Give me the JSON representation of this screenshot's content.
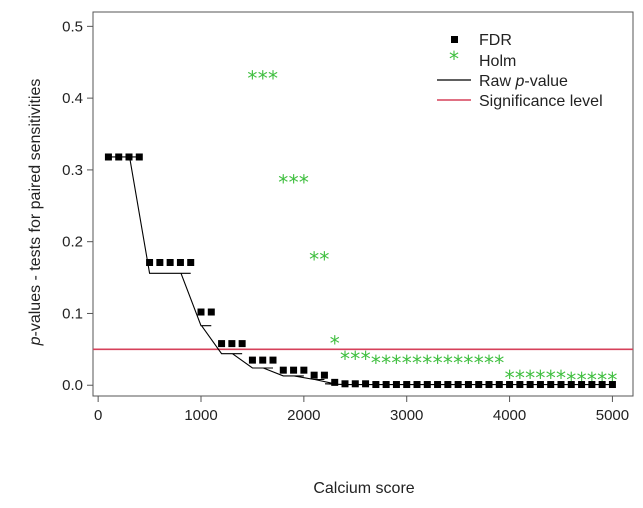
{
  "chart_data": {
    "type": "scatter",
    "xlabel": "Calcium score",
    "ylabel_italic": "p",
    "ylabel_rest": "-values - tests for paired sensitivities",
    "xlim": [
      -50,
      5200
    ],
    "ylim": [
      -0.015,
      0.52
    ],
    "x_ticks": [
      0,
      1000,
      2000,
      3000,
      4000,
      5000
    ],
    "x_tick_labels": [
      "0",
      "1000",
      "2000",
      "3000",
      "4000",
      "5000"
    ],
    "y_ticks": [
      0.0,
      0.1,
      0.2,
      0.3,
      0.4,
      0.5
    ],
    "y_tick_labels": [
      "0.0",
      "0.1",
      "0.2",
      "0.3",
      "0.4",
      "0.5"
    ],
    "legend_position": "top-right",
    "grid": false,
    "legend": [
      {
        "name": "FDR"
      },
      {
        "name": "Holm"
      },
      {
        "name_prefix": "Raw ",
        "name_italic": "p",
        "name_suffix": "-value"
      },
      {
        "name": "Significance level"
      }
    ],
    "colors": {
      "fdr": "#000000",
      "holm": "#3fbf3f",
      "raw": "#000000",
      "significance": "#d6405a"
    },
    "significance_level": 0.05,
    "fdr": {
      "x": [
        100,
        200,
        300,
        400,
        500,
        600,
        700,
        800,
        900,
        1000,
        1100,
        1200,
        1300,
        1400,
        1500,
        1600,
        1700,
        1800,
        1900,
        2000,
        2100,
        2200,
        2300,
        2400,
        2500,
        2600,
        2700,
        2800,
        2900,
        3000,
        3100,
        3200,
        3300,
        3400,
        3500,
        3600,
        3700,
        3800,
        3900,
        4000,
        4100,
        4200,
        4300,
        4400,
        4500,
        4600,
        4700,
        4800,
        4900,
        5000
      ],
      "y": [
        0.318,
        0.318,
        0.318,
        0.318,
        0.171,
        0.171,
        0.171,
        0.171,
        0.171,
        0.102,
        0.102,
        0.058,
        0.058,
        0.058,
        0.035,
        0.035,
        0.035,
        0.021,
        0.021,
        0.021,
        0.014,
        0.014,
        0.004,
        0.002,
        0.002,
        0.002,
        0.001,
        0.001,
        0.001,
        0.001,
        0.001,
        0.001,
        0.001,
        0.001,
        0.001,
        0.001,
        0.001,
        0.001,
        0.001,
        0.001,
        0.001,
        0.001,
        0.001,
        0.001,
        0.001,
        0.001,
        0.001,
        0.001,
        0.001,
        0.001
      ]
    },
    "holm": {
      "x": [
        1500,
        1600,
        1700,
        1800,
        1900,
        2000,
        2100,
        2200,
        2300,
        2400,
        2500,
        2600,
        2700,
        2800,
        2900,
        3000,
        3100,
        3200,
        3300,
        3400,
        3500,
        3600,
        3700,
        3800,
        3900,
        4000,
        4100,
        4200,
        4300,
        4400,
        4500,
        4600,
        4700,
        4800,
        4900,
        5000
      ],
      "y": [
        0.43,
        0.43,
        0.43,
        0.285,
        0.285,
        0.285,
        0.178,
        0.178,
        0.061,
        0.039,
        0.039,
        0.039,
        0.034,
        0.034,
        0.034,
        0.034,
        0.034,
        0.034,
        0.034,
        0.034,
        0.034,
        0.034,
        0.034,
        0.034,
        0.034,
        0.013,
        0.013,
        0.013,
        0.013,
        0.013,
        0.013,
        0.01,
        0.01,
        0.01,
        0.01,
        0.01
      ]
    },
    "raw_pvalue": {
      "x": [
        100,
        200,
        300,
        400,
        500,
        600,
        700,
        800,
        900,
        1000,
        1100,
        1200,
        1300,
        1400,
        1500,
        1600,
        1700,
        1800,
        1900,
        2000,
        2100,
        2200,
        2300,
        2400,
        2500,
        2600,
        2700,
        2800,
        2900,
        3000,
        3100,
        3200,
        3300,
        3400,
        3500,
        3600,
        3700,
        3800,
        3900,
        4000,
        4100,
        4200,
        4300,
        4400,
        4500,
        4600,
        4700,
        4800,
        4900,
        5000
      ],
      "y": [
        0.318,
        0.318,
        0.318,
        0.318,
        0.156,
        0.156,
        0.156,
        0.156,
        0.156,
        0.083,
        0.083,
        0.044,
        0.044,
        0.044,
        0.024,
        0.024,
        0.024,
        0.013,
        0.013,
        0.013,
        0.008,
        0.008,
        0.002,
        0.001,
        0.001,
        0.001,
        0.001,
        0.001,
        0.001,
        0.001,
        0.001,
        0.001,
        0.001,
        0.001,
        0.001,
        0.001,
        0.001,
        0.001,
        0.001,
        0.001,
        0.001,
        0.001,
        0.001,
        0.001,
        0.001,
        0.001,
        0.001,
        0.001,
        0.001,
        0.001
      ]
    }
  }
}
